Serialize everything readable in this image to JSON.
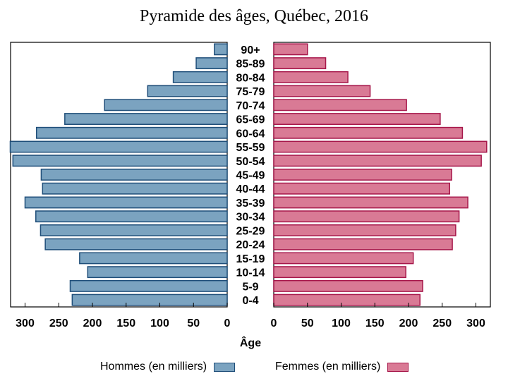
{
  "chart_data": {
    "type": "bar",
    "title": "Pyramide des âges, Québec, 2016",
    "xlabel": "Âge",
    "age_groups": [
      "90+",
      "85-89",
      "80-84",
      "75-79",
      "70-74",
      "65-69",
      "60-64",
      "55-59",
      "50-54",
      "45-49",
      "40-44",
      "35-39",
      "30-34",
      "25-29",
      "20-24",
      "15-19",
      "10-14",
      "5-9",
      "0-4"
    ],
    "series": [
      {
        "name": "Hommes (en milliers)",
        "color": "#7ba3c0",
        "edge": "#1f4e79",
        "values": [
          19,
          46,
          80,
          118,
          182,
          241,
          283,
          322,
          318,
          276,
          274,
          300,
          284,
          277,
          270,
          219,
          207,
          233,
          230
        ]
      },
      {
        "name": "Femmes (en milliers)",
        "color": "#d97a95",
        "edge": "#a6174a",
        "values": [
          50,
          77,
          110,
          143,
          197,
          247,
          280,
          316,
          308,
          264,
          261,
          288,
          275,
          270,
          265,
          207,
          196,
          221,
          217
        ]
      }
    ],
    "x_ticks": [
      300,
      250,
      200,
      150,
      100,
      50,
      0
    ],
    "xlim": [
      0,
      320
    ]
  }
}
